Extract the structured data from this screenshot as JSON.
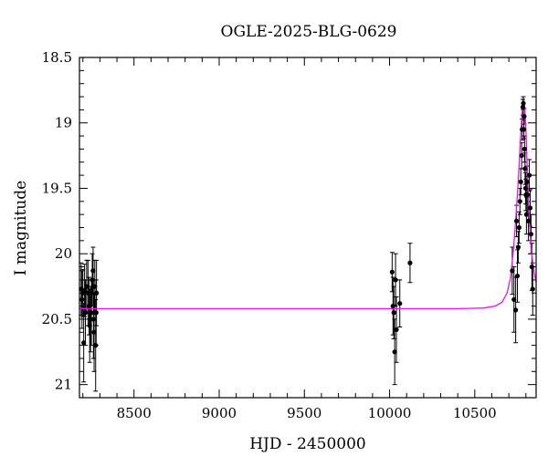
{
  "chart_data": {
    "type": "scatter",
    "title": "OGLE-2025-BLG-0629",
    "xlabel": "HJD - 2450000",
    "ylabel": "I magnitude",
    "xlim": [
      8180,
      10860
    ],
    "ylim": [
      21.1,
      18.5
    ],
    "y_inverted": true,
    "x_ticks": [
      8500,
      9000,
      9500,
      10000,
      10500
    ],
    "x_tick_labels": [
      "8500",
      "9000",
      "9500",
      "10000",
      "10500"
    ],
    "y_ticks": [
      18.5,
      19,
      19.5,
      20,
      20.5,
      21
    ],
    "y_tick_labels": [
      "18.5",
      "19",
      "19.5",
      "20",
      "20.5",
      "21"
    ],
    "grid": false,
    "colors": {
      "data": "#000000",
      "model": "#e815e8",
      "frame": "#000000"
    },
    "series": [
      {
        "kind": "points-with-errorbars",
        "x": [
          8190,
          8195,
          8200,
          8205,
          8210,
          8215,
          8222,
          8230,
          8236,
          8240,
          8245,
          8250,
          8255,
          8260,
          8262,
          8266,
          8270,
          8275,
          8278,
          8280,
          10015,
          10020,
          10025,
          10030,
          10035,
          10040,
          10060,
          10120,
          10720,
          10730,
          10740,
          10745,
          10750,
          10755,
          10760,
          10765,
          10770,
          10775,
          10778,
          10782,
          10785,
          10788,
          10790,
          10792,
          10795,
          10798,
          10800,
          10803,
          10806,
          10810,
          10815,
          10820,
          10825,
          10830,
          10835,
          10840
        ],
        "y": [
          20.27,
          20.35,
          20.3,
          20.68,
          20.28,
          20.45,
          20.25,
          20.3,
          20.4,
          20.55,
          20.5,
          20.45,
          20.2,
          20.13,
          20.5,
          20.6,
          20.25,
          20.7,
          20.45,
          20.3,
          20.14,
          20.4,
          20.45,
          20.75,
          20.2,
          20.58,
          20.38,
          20.07,
          20.13,
          20.35,
          20.43,
          19.75,
          20.17,
          19.95,
          19.8,
          19.6,
          19.45,
          19.25,
          19.05,
          18.88,
          18.85,
          19.05,
          18.95,
          19.2,
          19.35,
          19.5,
          19.55,
          19.7,
          19.45,
          19.55,
          19.75,
          19.4,
          19.65,
          19.85,
          20.1,
          20.27
        ],
        "err": [
          0.2,
          0.22,
          0.18,
          0.3,
          0.2,
          0.25,
          0.2,
          0.25,
          0.22,
          0.28,
          0.25,
          0.25,
          0.2,
          0.18,
          0.3,
          0.3,
          0.2,
          0.35,
          0.25,
          0.25,
          0.15,
          0.22,
          0.2,
          0.25,
          0.2,
          0.25,
          0.18,
          0.15,
          0.18,
          0.25,
          0.25,
          0.12,
          0.2,
          0.12,
          0.12,
          0.1,
          0.1,
          0.1,
          0.08,
          0.06,
          0.05,
          0.07,
          0.06,
          0.1,
          0.12,
          0.12,
          0.12,
          0.15,
          0.12,
          0.14,
          0.15,
          0.12,
          0.14,
          0.15,
          0.18,
          0.2
        ]
      },
      {
        "kind": "model-line",
        "baseline_mag": 20.42,
        "x": [
          8180,
          10400,
          10550,
          10620,
          10660,
          10690,
          10710,
          10725,
          10740,
          10755,
          10765,
          10775,
          10782,
          10788,
          10793,
          10800,
          10808,
          10818,
          10830,
          10845,
          10860
        ],
        "y": [
          20.42,
          20.42,
          20.415,
          20.4,
          20.37,
          20.3,
          20.18,
          20.0,
          19.75,
          19.45,
          19.2,
          18.98,
          18.86,
          18.83,
          18.88,
          19.05,
          19.35,
          19.7,
          19.95,
          20.12,
          20.22
        ]
      }
    ]
  }
}
